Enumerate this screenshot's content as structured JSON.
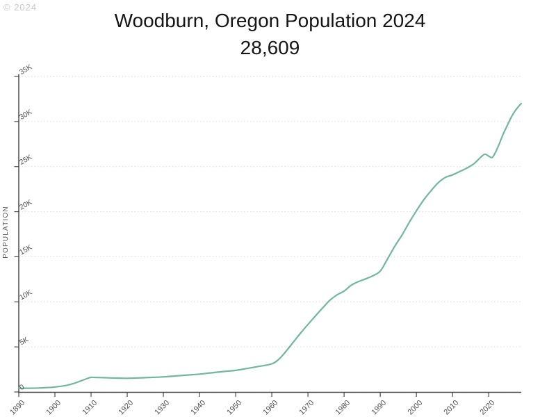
{
  "watermark": "© 2024",
  "header": {
    "title": "Woodburn, Oregon Population 2024",
    "subtitle_population": "28,609"
  },
  "chart_data": {
    "type": "line",
    "title": "Woodburn, Oregon Population 2024",
    "annotation_2024_population": "28,609",
    "xlabel": "",
    "ylabel": "POPULATION",
    "xlim": [
      1890,
      2029
    ],
    "ylim": [
      0,
      35000
    ],
    "grid": "horizontal-dotted",
    "legend": "none",
    "x_ticks": [
      1890,
      1900,
      1910,
      1920,
      1930,
      1940,
      1950,
      1960,
      1970,
      1980,
      1990,
      2000,
      2010,
      2020
    ],
    "y_ticks": [
      {
        "value": 0,
        "label": "0"
      },
      {
        "value": 5000,
        "label": "5K"
      },
      {
        "value": 10000,
        "label": "10K"
      },
      {
        "value": 15000,
        "label": "15K"
      },
      {
        "value": 20000,
        "label": "20K"
      },
      {
        "value": 25000,
        "label": "25K"
      },
      {
        "value": 30000,
        "label": "30K"
      },
      {
        "value": 35000,
        "label": "35K"
      }
    ],
    "series": [
      {
        "name": "Population",
        "color": "#72b5a1",
        "points": [
          [
            1890,
            405
          ],
          [
            1893,
            420
          ],
          [
            1896,
            450
          ],
          [
            1899,
            520
          ],
          [
            1901,
            600
          ],
          [
            1903,
            720
          ],
          [
            1905,
            920
          ],
          [
            1907,
            1200
          ],
          [
            1909,
            1500
          ],
          [
            1910,
            1616
          ],
          [
            1912,
            1605
          ],
          [
            1915,
            1565
          ],
          [
            1918,
            1535
          ],
          [
            1920,
            1520
          ],
          [
            1923,
            1560
          ],
          [
            1926,
            1610
          ],
          [
            1930,
            1675
          ],
          [
            1934,
            1800
          ],
          [
            1937,
            1890
          ],
          [
            1940,
            1982
          ],
          [
            1944,
            2160
          ],
          [
            1947,
            2280
          ],
          [
            1950,
            2395
          ],
          [
            1953,
            2600
          ],
          [
            1956,
            2810
          ],
          [
            1960,
            3120
          ],
          [
            1962,
            3650
          ],
          [
            1964,
            4550
          ],
          [
            1966,
            5550
          ],
          [
            1968,
            6550
          ],
          [
            1970,
            7495
          ],
          [
            1972,
            8400
          ],
          [
            1974,
            9300
          ],
          [
            1976,
            10150
          ],
          [
            1978,
            10760
          ],
          [
            1980,
            11196
          ],
          [
            1982,
            11850
          ],
          [
            1984,
            12250
          ],
          [
            1986,
            12550
          ],
          [
            1988,
            12900
          ],
          [
            1990,
            13404
          ],
          [
            1992,
            14750
          ],
          [
            1994,
            16150
          ],
          [
            1996,
            17400
          ],
          [
            1998,
            18800
          ],
          [
            2000,
            20100
          ],
          [
            2002,
            21300
          ],
          [
            2004,
            22300
          ],
          [
            2006,
            23200
          ],
          [
            2008,
            23800
          ],
          [
            2010,
            24080
          ],
          [
            2012,
            24450
          ],
          [
            2014,
            24850
          ],
          [
            2016,
            25350
          ],
          [
            2018,
            26120
          ],
          [
            2019,
            26380
          ],
          [
            2020,
            26160
          ],
          [
            2021,
            26020
          ],
          [
            2022,
            26700
          ],
          [
            2023,
            27600
          ],
          [
            2024,
            28609
          ],
          [
            2025,
            29450
          ],
          [
            2026,
            30300
          ],
          [
            2027,
            31000
          ],
          [
            2028,
            31550
          ],
          [
            2029,
            32000
          ]
        ]
      }
    ]
  },
  "colors": {
    "background": "#ffffff",
    "line": "#72b5a1",
    "axis": "#4a4a4a",
    "tick_label": "#4f4f4f",
    "gridline": "#d9d9d9",
    "title": "#151515",
    "watermark": "#c8c8c8"
  }
}
